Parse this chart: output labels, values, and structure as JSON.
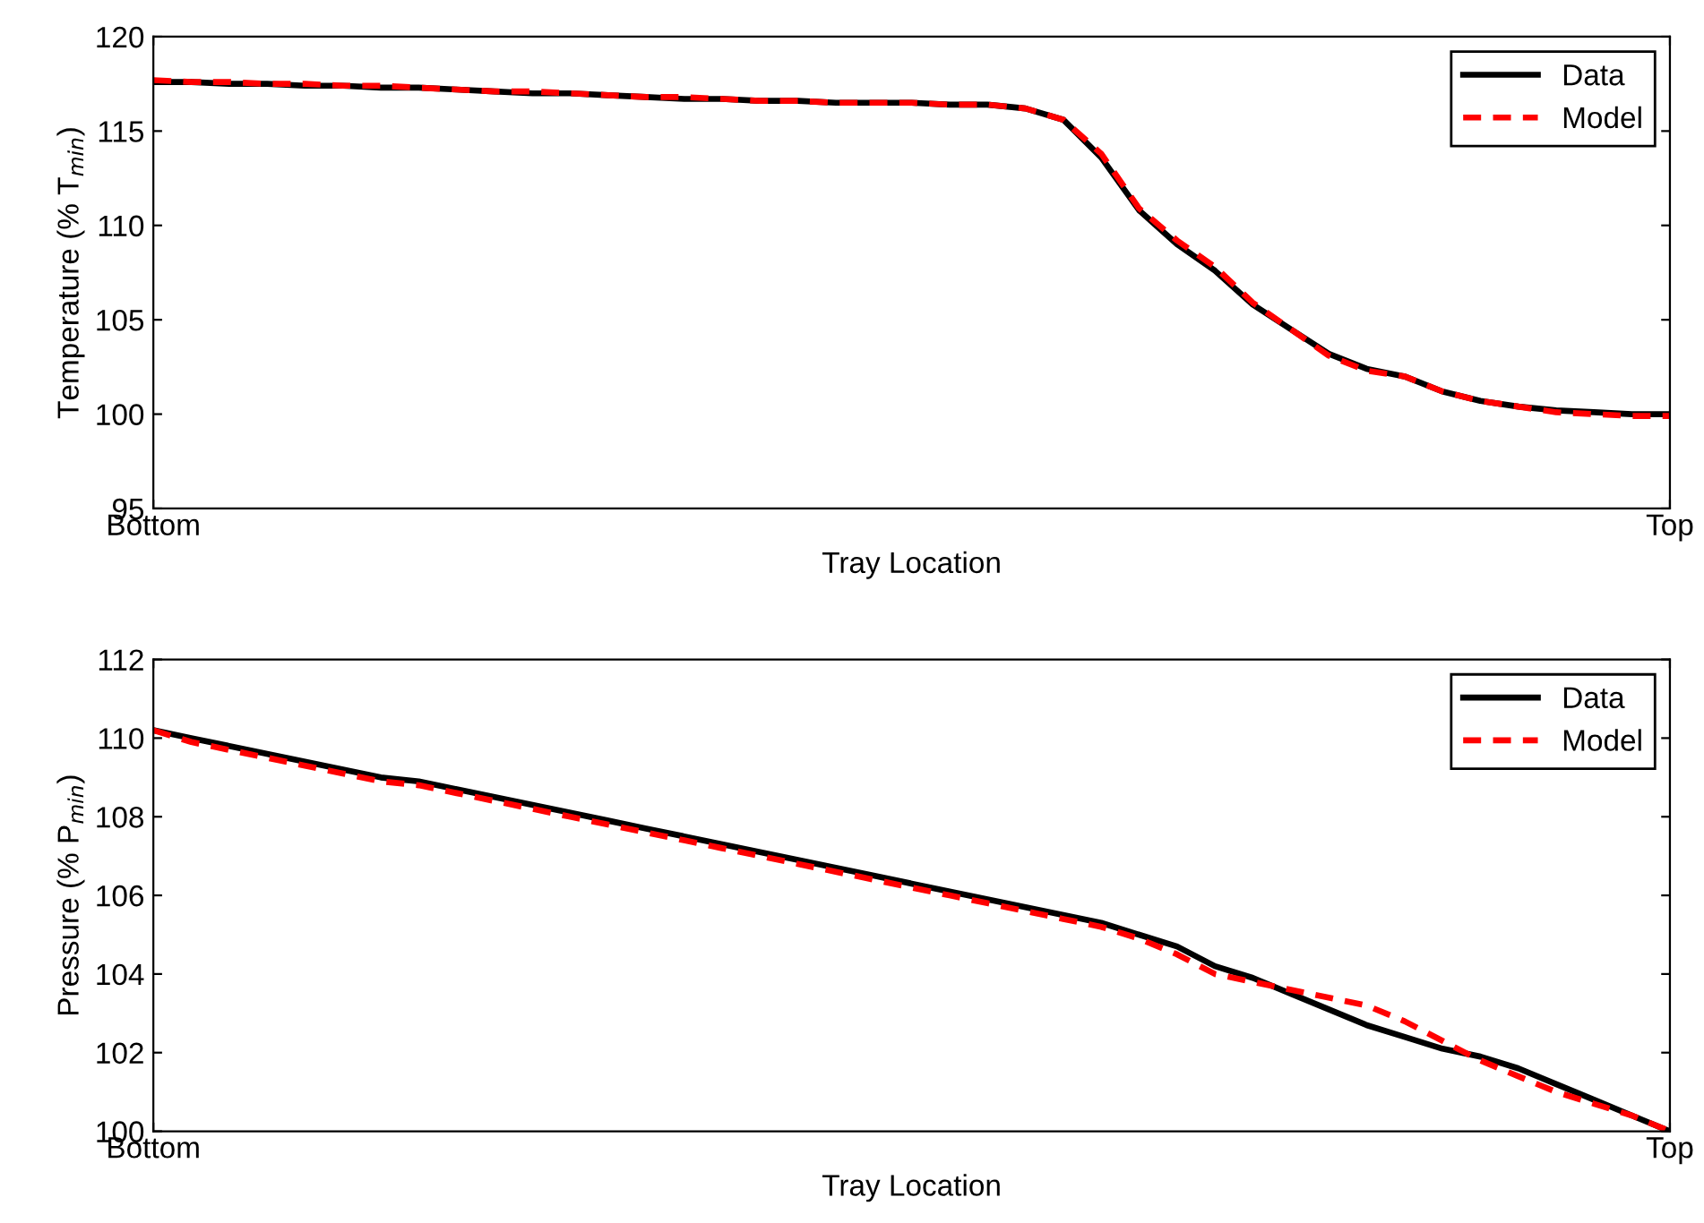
{
  "chart_data": [
    {
      "type": "line",
      "xlabel": "Tray Location",
      "ylabel": "Temperature (% T$_{min}$)",
      "categories": [
        "Bottom",
        null,
        null,
        null,
        null,
        null,
        null,
        null,
        null,
        null,
        null,
        null,
        null,
        null,
        null,
        null,
        null,
        null,
        null,
        null,
        null,
        null,
        null,
        null,
        null,
        null,
        null,
        null,
        null,
        null,
        null,
        null,
        null,
        null,
        null,
        null,
        null,
        null,
        null,
        null,
        "Top"
      ],
      "ylim": [
        95,
        120
      ],
      "yticks": [
        95,
        100,
        105,
        110,
        115,
        120
      ],
      "legend": "top right",
      "series": [
        {
          "name": "Data",
          "color": "#000000",
          "line_style": "solid",
          "values": [
            117.6,
            117.6,
            117.5,
            117.5,
            117.4,
            117.4,
            117.3,
            117.3,
            117.2,
            117.1,
            117.0,
            117.0,
            116.9,
            116.8,
            116.7,
            116.7,
            116.6,
            116.6,
            116.5,
            116.5,
            116.5,
            116.4,
            116.4,
            116.2,
            115.6,
            113.6,
            110.8,
            109.0,
            107.6,
            105.8,
            104.5,
            103.2,
            102.4,
            102.0,
            101.2,
            100.7,
            100.4,
            100.2,
            100.1,
            100.0,
            100.0
          ]
        },
        {
          "name": "Model",
          "color": "#ff0000",
          "line_style": "dashed",
          "values": [
            117.7,
            117.6,
            117.6,
            117.5,
            117.5,
            117.4,
            117.4,
            117.3,
            117.2,
            117.1,
            117.1,
            117.0,
            116.9,
            116.8,
            116.8,
            116.7,
            116.6,
            116.6,
            116.5,
            116.5,
            116.5,
            116.4,
            116.4,
            116.2,
            115.6,
            113.8,
            110.9,
            109.2,
            107.8,
            105.9,
            104.5,
            103.1,
            102.3,
            102.0,
            101.2,
            100.7,
            100.4,
            100.1,
            100.0,
            99.9,
            99.9
          ]
        }
      ]
    },
    {
      "type": "line",
      "xlabel": "Tray Location",
      "ylabel": "Pressure (% P$_{min}$)",
      "categories": [
        "Bottom",
        null,
        null,
        null,
        null,
        null,
        null,
        null,
        null,
        null,
        null,
        null,
        null,
        null,
        null,
        null,
        null,
        null,
        null,
        null,
        null,
        null,
        null,
        null,
        null,
        null,
        null,
        null,
        null,
        null,
        null,
        null,
        null,
        null,
        null,
        null,
        null,
        null,
        null,
        null,
        "Top"
      ],
      "ylim": [
        100,
        112
      ],
      "yticks": [
        100,
        102,
        104,
        106,
        108,
        110,
        112
      ],
      "legend": "top right",
      "series": [
        {
          "name": "Data",
          "color": "#000000",
          "line_style": "solid",
          "values": [
            110.2,
            110.0,
            109.8,
            109.6,
            109.4,
            109.2,
            109.0,
            108.9,
            108.7,
            108.5,
            108.3,
            108.1,
            107.9,
            107.7,
            107.5,
            107.3,
            107.1,
            106.9,
            106.7,
            106.5,
            106.3,
            106.1,
            105.9,
            105.7,
            105.5,
            105.3,
            105.0,
            104.7,
            104.2,
            103.9,
            103.5,
            103.1,
            102.7,
            102.4,
            102.1,
            101.9,
            101.6,
            101.2,
            100.8,
            100.4,
            100.0
          ]
        },
        {
          "name": "Model",
          "color": "#ff0000",
          "line_style": "dashed",
          "values": [
            110.2,
            109.9,
            109.7,
            109.5,
            109.3,
            109.1,
            108.9,
            108.8,
            108.6,
            108.4,
            108.2,
            108.0,
            107.8,
            107.6,
            107.4,
            107.2,
            107.0,
            106.8,
            106.6,
            106.4,
            106.2,
            106.0,
            105.8,
            105.6,
            105.4,
            105.2,
            104.9,
            104.5,
            104.0,
            103.8,
            103.6,
            103.4,
            103.2,
            102.8,
            102.3,
            101.8,
            101.4,
            101.0,
            100.7,
            100.4,
            100.0
          ]
        }
      ]
    }
  ]
}
